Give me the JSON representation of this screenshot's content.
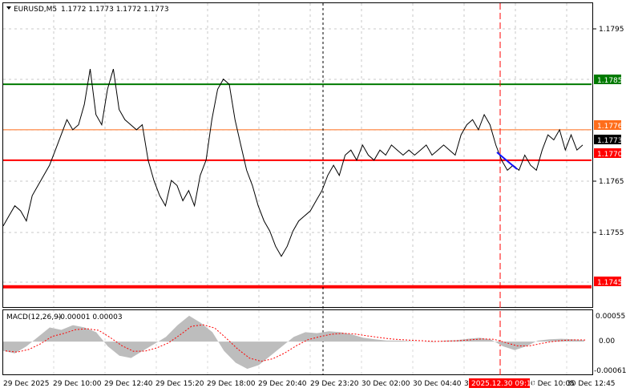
{
  "header": {
    "symbol_label": "EURUSD,M5",
    "ohlc": "1.1772 1.1773 1.1772 1.1773"
  },
  "macd": {
    "label": "MACD(12,26,9)",
    "values": "-0.00001 0.00003",
    "ticks": [
      "0.00055",
      "0.00",
      "-0.00061"
    ]
  },
  "price_axis": {
    "ticks": [
      "1.1795",
      "1.1765",
      "1.1755"
    ]
  },
  "levels": [
    {
      "label": "1.1785",
      "price": 1.1785,
      "color": "#007a00",
      "text_color": "#ffffff"
    },
    {
      "label": "1.1776",
      "price": 1.1776,
      "color": "#ff6d1a",
      "text_color": "#ffffff"
    },
    {
      "label": "1.1773",
      "price": 1.1773,
      "color": "#000000",
      "text_color": "#ffffff"
    },
    {
      "label": "1.1770",
      "price": 1.177,
      "color": "#ff0000",
      "text_color": "#ffffff"
    },
    {
      "label": "1.1745",
      "price": 1.1745,
      "color": "#ff0000",
      "text_color": "#ffffff"
    }
  ],
  "time_axis": {
    "labels": [
      "29 Dec 2025",
      "29 Dec 10:00",
      "29 Dec 12:40",
      "29 Dec 15:20",
      "29 Dec 18:00",
      "29 Dec 20:40",
      "29 Dec 23:20",
      "30 Dec 02:00",
      "30 Dec 04:40",
      "3",
      "0 Dec 10:05",
      "30 Dec 12:45"
    ],
    "highlight": "2025.12.30 09:15"
  },
  "chart_data": {
    "type": "line",
    "title": "EURUSD,M5",
    "series": [
      {
        "name": "EURUSD",
        "values": [
          1.1757,
          1.1759,
          1.1761,
          1.176,
          1.1758,
          1.1763,
          1.1765,
          1.1767,
          1.1769,
          1.1772,
          1.1775,
          1.1778,
          1.1776,
          1.1777,
          1.1781,
          1.1788,
          1.1779,
          1.1777,
          1.1784,
          1.1788,
          1.178,
          1.1778,
          1.1777,
          1.1776,
          1.1777,
          1.177,
          1.1766,
          1.1763,
          1.1761,
          1.1766,
          1.1765,
          1.1762,
          1.1764,
          1.1761,
          1.1767,
          1.177,
          1.1778,
          1.1784,
          1.1786,
          1.1785,
          1.1778,
          1.1773,
          1.1768,
          1.1765,
          1.1761,
          1.1758,
          1.1756,
          1.1753,
          1.1751,
          1.1753,
          1.1756,
          1.1758,
          1.1759,
          1.176,
          1.1762,
          1.1764,
          1.1767,
          1.1769,
          1.1767,
          1.1771,
          1.1772,
          1.177,
          1.1773,
          1.1771,
          1.177,
          1.1772,
          1.1771,
          1.1773,
          1.1772,
          1.1771,
          1.1772,
          1.1771,
          1.1772,
          1.1773,
          1.1771,
          1.1772,
          1.1773,
          1.1772,
          1.1771,
          1.1775,
          1.1777,
          1.1778,
          1.1776,
          1.1779,
          1.1777,
          1.1773,
          1.177,
          1.1768,
          1.1769,
          1.1768,
          1.1771,
          1.1769,
          1.1768,
          1.1772,
          1.1775,
          1.1774,
          1.1776,
          1.1772,
          1.1775,
          1.1772,
          1.1773
        ]
      },
      {
        "name": "MACD",
        "values": [
          -0.0002,
          -0.00025,
          -0.0001,
          0.0001,
          0.0003,
          0.00025,
          0.00035,
          0.0003,
          0.0002,
          -0.0001,
          -0.0003,
          -0.00035,
          -0.0002,
          -5e-05,
          0.0001,
          0.00035,
          0.00055,
          0.0004,
          0.0002,
          -0.0002,
          -0.00045,
          -0.00058,
          -0.0005,
          -0.0003,
          -0.0001,
          0.0001,
          0.0002,
          0.00018,
          0.00022,
          0.0002,
          0.00015,
          8e-05,
          5e-05,
          2e-05,
          2e-05,
          1e-05,
          0.0,
          -1e-05,
          2e-05,
          3e-05,
          6e-05,
          8e-05,
          4e-05,
          -0.0001,
          -0.00018,
          -0.0001,
          2e-05,
          5e-05,
          6e-05,
          5e-05,
          3e-05
        ]
      }
    ],
    "ylim": [
      1.1741,
      1.1801
    ],
    "macd_ylim": [
      -0.00068,
      0.00065
    ]
  }
}
